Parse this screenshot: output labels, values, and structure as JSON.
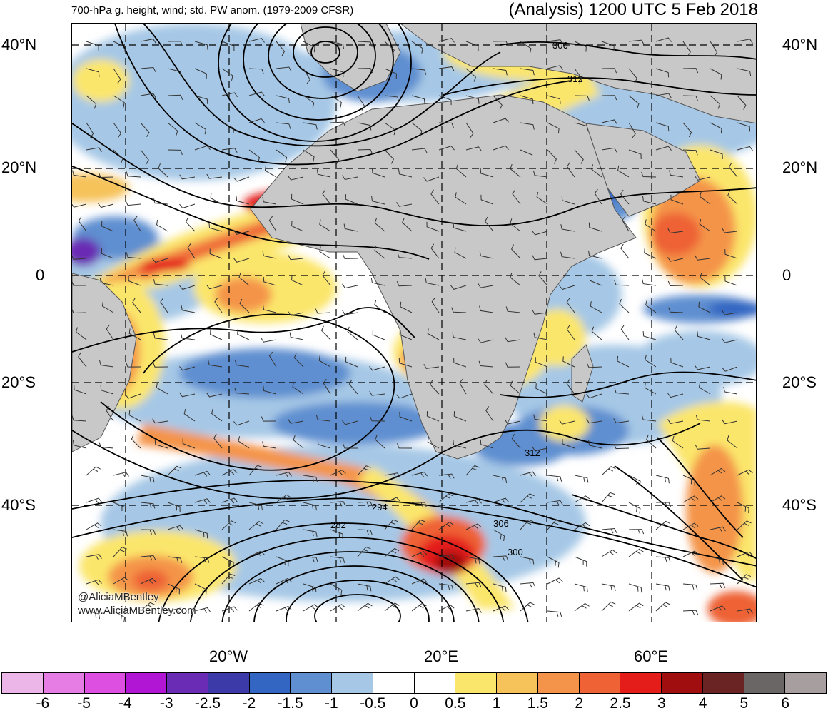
{
  "header": {
    "title_left": "700-hPa g. height, wind; std. PW anom. (1979-2009 CFSR)",
    "title_right": "(Analysis) 1200 UTC 5 Feb 2018"
  },
  "axes": {
    "lat_labels": [
      "40°N",
      "20°N",
      "0",
      "20°S",
      "40°S"
    ],
    "lon_labels": [
      "20°W",
      "20°E",
      "60°E"
    ]
  },
  "contour_labels": [
    "306",
    "312",
    "312",
    "294",
    "282",
    "306",
    "300"
  ],
  "credits": {
    "handle": "@AliciaMBentley",
    "website": "www.AliciaMBentley.com"
  },
  "colorbar": {
    "colors": [
      "#ecb7e8",
      "#e57de4",
      "#dc4fe0",
      "#b116d4",
      "#6a2cb4",
      "#3b3aa8",
      "#3266c2",
      "#5f8fd0",
      "#a6c8e6",
      "#ffffff",
      "#ffffff",
      "#fbe66c",
      "#f6c25a",
      "#f4944a",
      "#ee6236",
      "#e41d1a",
      "#a00e0f",
      "#6b2424",
      "#6b6666",
      "#a79f9f"
    ],
    "labels": [
      "-6",
      "-5",
      "-4",
      "-3",
      "-2.5",
      "-2",
      "-1.5",
      "-1",
      "-0.5",
      "0",
      "0.5",
      "1",
      "1.5",
      "2",
      "2.5",
      "3",
      "4",
      "5",
      "6"
    ]
  },
  "land_color": "#c8c8c8"
}
